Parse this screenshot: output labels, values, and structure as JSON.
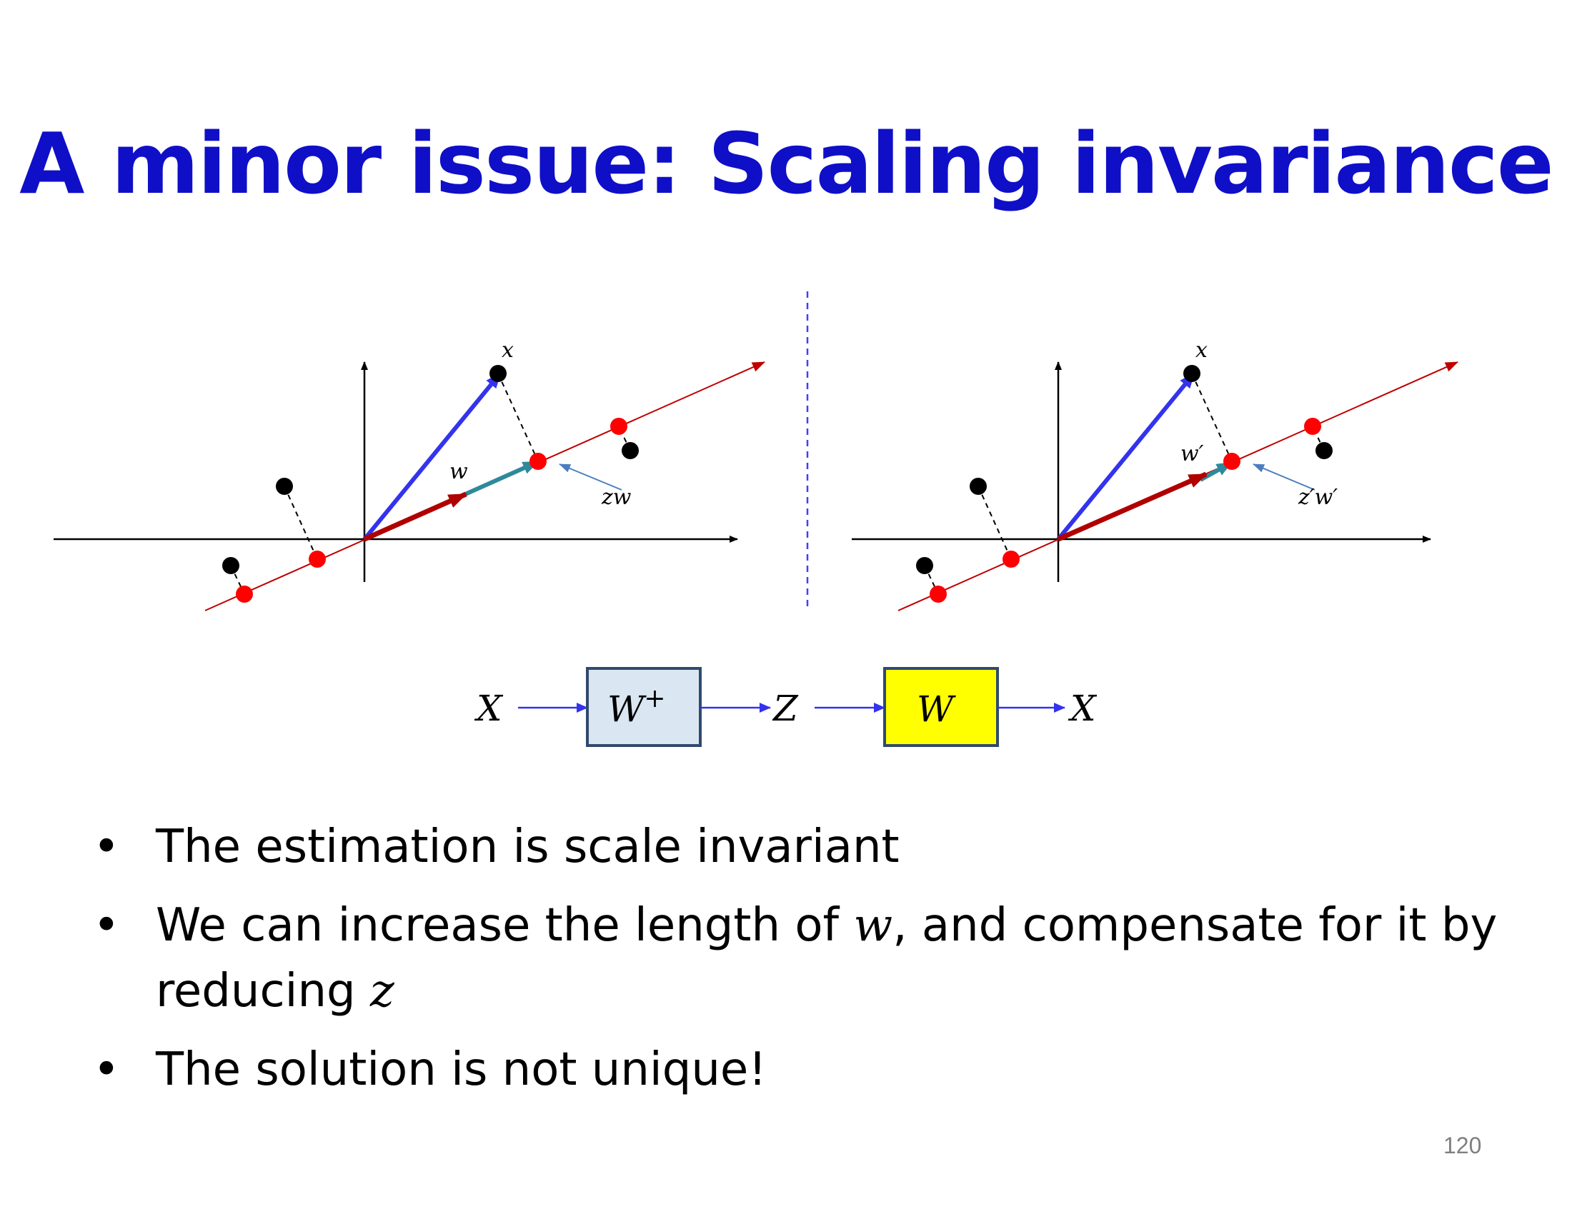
{
  "title": "A minor issue: Scaling invariance",
  "left_diagram": {
    "x_label": "x",
    "w_label": "w",
    "zw_label": "zw"
  },
  "right_diagram": {
    "x_label": "x",
    "w_label": "w′",
    "zw_label": "z′w′"
  },
  "pipeline": {
    "input_label": "X",
    "encoder_label": "W",
    "encoder_sup": "+",
    "code_label": "Z",
    "decoder_label": "W",
    "output_label": "X",
    "encoder_color": "#dae6f2",
    "decoder_color": "#ffff00"
  },
  "bullets": [
    {
      "text": "The estimation is scale invariant"
    },
    {
      "text_before": "We can increase the length of ",
      "math1": "w",
      "text_mid": ", and compensate for it by reducing ",
      "math2": "z"
    },
    {
      "text": "The solution is not unique!"
    }
  ],
  "page_number": "120",
  "colors": {
    "title": "#0f0fc8",
    "data_point": "#000000",
    "projection_point": "#ff0000",
    "principal_axis": "#c00000",
    "x_vector": "#3333ee",
    "w_vector": "#b00000",
    "zw_vector": "#2e8a9a",
    "divider": "#4040ff"
  }
}
